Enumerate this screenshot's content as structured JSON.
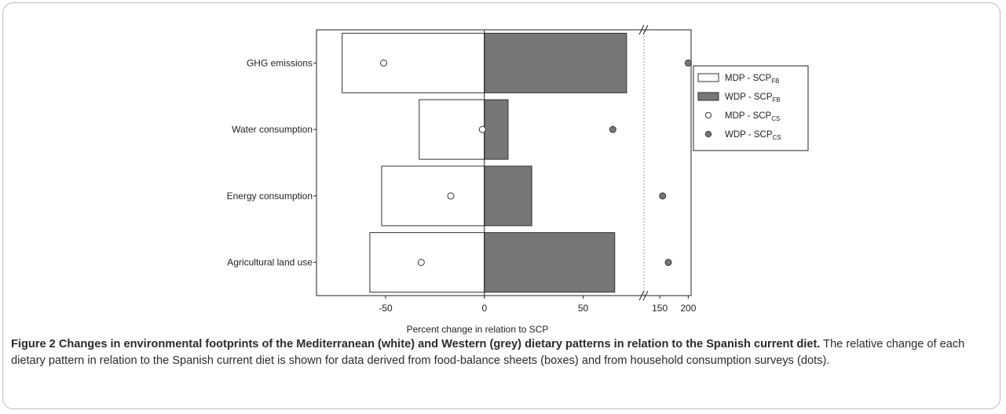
{
  "chart_data": {
    "type": "bar",
    "orientation": "horizontal",
    "categories": [
      "GHG emissions",
      "Water consumption",
      "Energy consumption",
      "Agricultural land use"
    ],
    "series": [
      {
        "name": "MDP - SCP",
        "name_sub": "FB",
        "kind": "bar",
        "color": "#ffffff",
        "values": [
          -72,
          -33,
          -52,
          -58
        ]
      },
      {
        "name": "WDP - SCP",
        "name_sub": "FB",
        "kind": "bar",
        "color": "#777777",
        "values": [
          72,
          12,
          24,
          66
        ]
      },
      {
        "name": "MDP - SCP",
        "name_sub": "CS",
        "kind": "dot",
        "color": "#ffffff",
        "values": [
          -51,
          -1,
          -17,
          -32
        ]
      },
      {
        "name": "WDP - SCP",
        "name_sub": "CS",
        "kind": "dot",
        "color": "#777777",
        "values": [
          200,
          65,
          155,
          165
        ]
      }
    ],
    "x_axis": {
      "label": "Percent change in relation to SCP",
      "segments": [
        {
          "range": [
            -85,
            80
          ],
          "ticks": [
            -50,
            0,
            50
          ]
        },
        {
          "range": [
            125,
            205
          ],
          "ticks": [
            150,
            200
          ]
        }
      ],
      "break": true
    },
    "reference_line": 0,
    "legend_position": "top-right",
    "grid": false
  },
  "caption": {
    "title": "Figure 2 Changes in environmental footprints of the Mediterranean (white) and Western (grey) dietary patterns in relation to the Spanish current diet.",
    "text": "The relative change of each dietary pattern in relation to the Spanish current diet is shown for data derived from food-balance sheets (boxes) and from household consumption surveys (dots)."
  }
}
